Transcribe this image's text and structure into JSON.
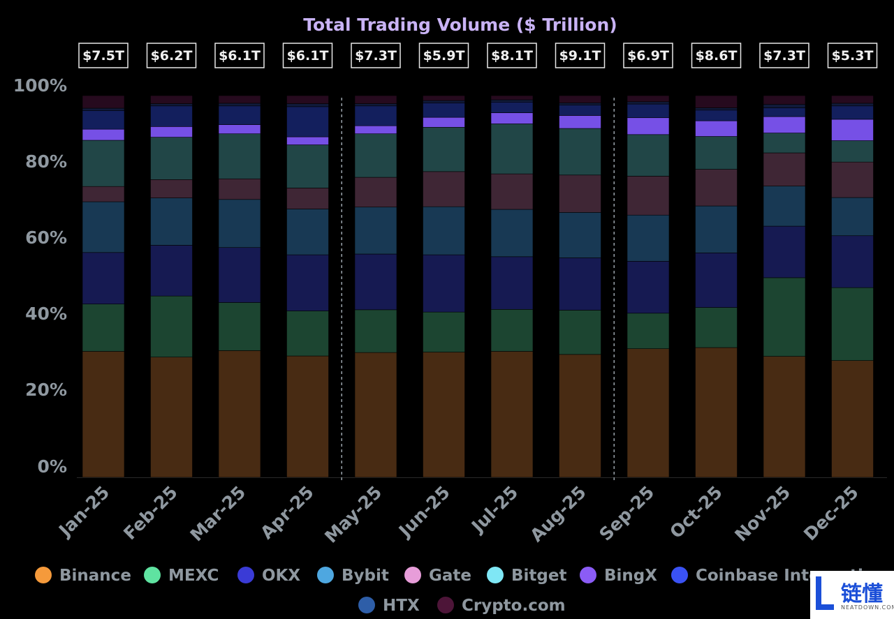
{
  "chart_data": {
    "type": "bar",
    "stacked": true,
    "normalized": true,
    "title": "Total Trading Volume ($ Trillion)",
    "categories": [
      "Jan-25",
      "Feb-25",
      "Mar-25",
      "Apr-25",
      "May-25",
      "Jun-25",
      "Jul-25",
      "Aug-25",
      "Sep-25",
      "Oct-25",
      "Nov-25",
      "Dec-25"
    ],
    "totals": [
      "$7.5T",
      "$6.2T",
      "$6.1T",
      "$6.1T",
      "$7.3T",
      "$5.9T",
      "$8.1T",
      "$9.1T",
      "$6.9T",
      "$8.6T",
      "$7.3T",
      "$5.3T"
    ],
    "ylim": [
      0,
      100
    ],
    "yticks": [
      "0%",
      "20%",
      "40%",
      "60%",
      "80%",
      "100%"
    ],
    "divider_after_categories": [
      "Apr-25",
      "Aug-25"
    ],
    "legend_position": "bottom",
    "series": [
      {
        "name": "Binance",
        "color": "#f59a3b",
        "fill": "#482b13",
        "values": [
          33.0,
          31.5,
          33.2,
          31.8,
          32.7,
          32.8,
          33.0,
          32.2,
          33.7,
          34.0,
          31.7,
          30.6
        ]
      },
      {
        "name": "MEXC",
        "color": "#5fe3a1",
        "fill": "#1c4531",
        "values": [
          12.4,
          16.0,
          12.6,
          11.8,
          11.2,
          10.5,
          11.0,
          11.6,
          9.3,
          10.5,
          20.6,
          19.1
        ]
      },
      {
        "name": "OKX",
        "color": "#3a3bd6",
        "fill": "#161a52",
        "values": [
          13.5,
          13.3,
          14.4,
          14.7,
          14.6,
          15.0,
          13.8,
          13.7,
          13.6,
          14.3,
          13.5,
          13.6
        ]
      },
      {
        "name": "Bybit",
        "color": "#4ea7e0",
        "fill": "#183954",
        "values": [
          13.3,
          12.4,
          12.6,
          12.0,
          12.3,
          12.6,
          12.4,
          11.9,
          12.1,
          12.3,
          10.5,
          10.0
        ]
      },
      {
        "name": "Gate",
        "color": "#e79dd9",
        "fill": "#3f2635",
        "values": [
          4.0,
          4.8,
          5.4,
          5.5,
          7.8,
          9.2,
          9.3,
          9.8,
          10.2,
          9.6,
          8.7,
          9.3
        ]
      },
      {
        "name": "Bitget",
        "color": "#7fe7f5",
        "fill": "#214647",
        "values": [
          12.1,
          11.1,
          11.8,
          11.3,
          11.4,
          11.6,
          13.1,
          12.2,
          10.9,
          8.6,
          5.2,
          5.6
        ]
      },
      {
        "name": "BingX",
        "color": "#8b5cf6",
        "fill": "#7650e6",
        "values": [
          2.9,
          2.8,
          2.4,
          2.1,
          2.1,
          2.6,
          2.9,
          3.4,
          4.4,
          4.1,
          4.3,
          5.6
        ]
      },
      {
        "name": "Coinbase International",
        "color": "#3a52f4",
        "fill": "#131f5d",
        "values": [
          4.9,
          5.4,
          4.9,
          7.9,
          5.2,
          3.8,
          2.8,
          2.7,
          3.6,
          2.8,
          2.3,
          3.5
        ]
      },
      {
        "name": "HTX",
        "color": "#2e5ea8",
        "fill": "#101a3a",
        "values": [
          0.6,
          0.6,
          0.7,
          0.8,
          0.6,
          0.6,
          0.6,
          0.6,
          0.6,
          0.6,
          0.9,
          0.7
        ]
      },
      {
        "name": "Crypto.com",
        "color": "#4d1538",
        "fill": "#260a1e",
        "values": [
          3.3,
          2.1,
          2.0,
          2.1,
          2.1,
          1.3,
          1.1,
          1.9,
          1.6,
          3.2,
          2.3,
          2.0
        ]
      }
    ]
  },
  "watermark": {
    "name": "链懂",
    "sub": "NEATDOWN.COM"
  }
}
